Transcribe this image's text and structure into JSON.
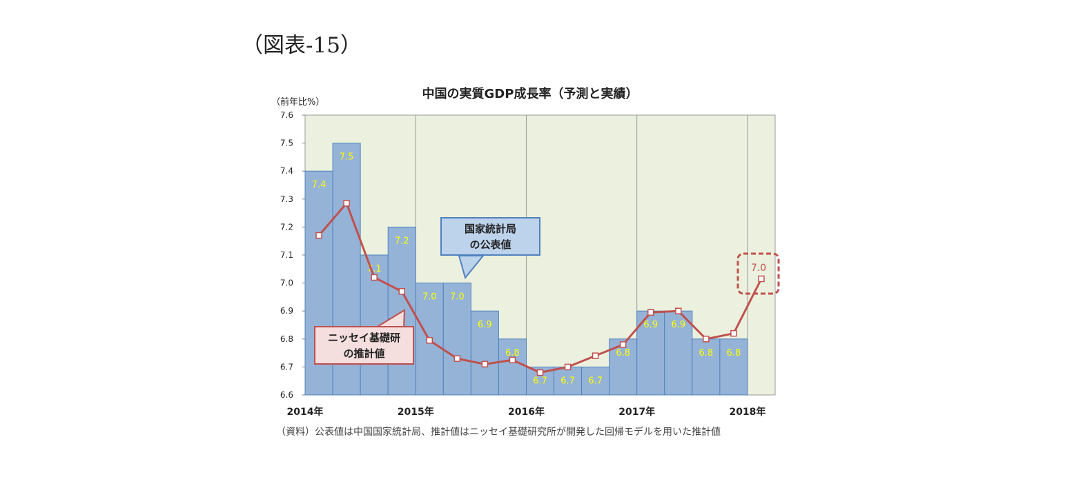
{
  "figure_label": "（図表-15）",
  "source_note": "（資料）公表値は中国国家統計局、推計値はニッセイ基礎研究所が開発した回帰モデルを用いた推計値",
  "callouts": {
    "official": {
      "line1": "国家統計局",
      "line2": "の公表値"
    },
    "forecast": {
      "line1": "ニッセイ基礎研",
      "line2": "の推計値"
    }
  },
  "colors": {
    "plot_bg": "#ebf1de",
    "bar_fill": "#95b3d7",
    "bar_stroke": "#4f81bd",
    "line": "#c0504d",
    "bar_label": "#ffff00",
    "highlight": "#c0504d"
  },
  "chart_data": {
    "type": "bar+line",
    "title": "中国の実質GDP成長率（予測と実績）",
    "ylabel": "（前年比%）",
    "ylim": [
      6.6,
      7.6
    ],
    "yticks": [
      "7.6",
      "7.5",
      "7.4",
      "7.3",
      "7.2",
      "7.1",
      "7.0",
      "6.9",
      "6.8",
      "6.7",
      "6.6"
    ],
    "year_labels": [
      "2014年",
      "2015年",
      "2016年",
      "2017年",
      "2018年"
    ],
    "categories": [
      "2014Q1",
      "2014Q2",
      "2014Q3",
      "2014Q4",
      "2015Q1",
      "2015Q2",
      "2015Q3",
      "2015Q4",
      "2016Q1",
      "2016Q2",
      "2016Q3",
      "2016Q4",
      "2017Q1",
      "2017Q2",
      "2017Q3",
      "2017Q4",
      "2018Q1"
    ],
    "series": [
      {
        "type": "bar",
        "values": [
          7.4,
          7.5,
          7.1,
          7.2,
          7.0,
          7.0,
          6.9,
          6.8,
          6.7,
          6.7,
          6.7,
          6.8,
          6.9,
          6.9,
          6.8,
          6.8,
          null
        ],
        "labels": [
          "7.4",
          "7.5",
          "7.1",
          "7.2",
          "7.0",
          "7.0",
          "6.9",
          "6.8",
          "6.7",
          "6.7",
          "6.7",
          "6.8",
          "6.9",
          "6.9",
          "6.8",
          "6.8",
          ""
        ]
      },
      {
        "type": "line",
        "values": [
          7.17,
          7.285,
          7.02,
          6.97,
          6.795,
          6.73,
          6.71,
          6.725,
          6.68,
          6.7,
          6.74,
          6.78,
          6.895,
          6.9,
          6.8,
          6.82,
          7.015
        ]
      }
    ],
    "forecast_label": "7.0"
  }
}
